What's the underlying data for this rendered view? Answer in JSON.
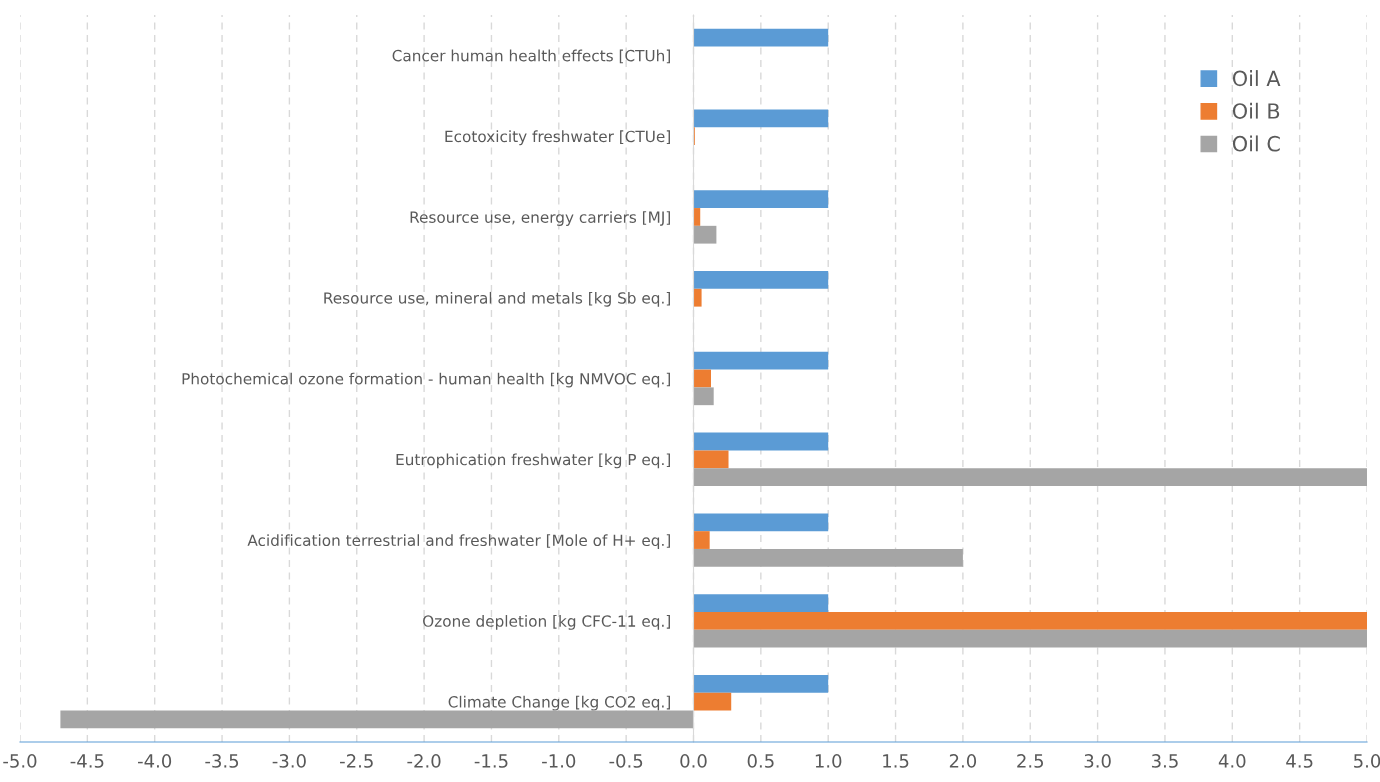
{
  "chart_data": {
    "type": "bar",
    "orientation": "horizontal",
    "categories": [
      "Cancer human health effects [CTUh]",
      "Ecotoxicity freshwater [CTUe]",
      "Resource use, energy carriers [MJ]",
      "Resource use, mineral and metals [kg Sb eq.]",
      "Photochemical ozone formation - human health [kg NMVOC eq.]",
      "Eutrophication freshwater [kg P eq.]",
      "Acidification terrestrial and freshwater [Mole of H+ eq.]",
      "Ozone depletion [kg CFC-11 eq.]",
      "Climate Change [kg CO2 eq.]"
    ],
    "series": [
      {
        "name": "Oil A",
        "color": "#5b9bd5",
        "values": [
          1,
          1,
          1,
          1,
          1,
          1,
          1,
          1,
          1
        ]
      },
      {
        "name": "Oil B",
        "color": "#ed7d31",
        "values": [
          null,
          0.01,
          0.05,
          0.06,
          0.13,
          0.26,
          0.12,
          5,
          0.28
        ]
      },
      {
        "name": "Oil C",
        "color": "#a5a5a5",
        "values": [
          null,
          null,
          0.17,
          null,
          0.15,
          5,
          2,
          5,
          -4.7
        ]
      }
    ],
    "xlim": [
      -5,
      5
    ],
    "xticks": [
      {
        "value": -5,
        "label": "-5.0"
      },
      {
        "value": -4.5,
        "label": "-4.5"
      },
      {
        "value": -4,
        "label": "-4.0"
      },
      {
        "value": -3.5,
        "label": "-3.5"
      },
      {
        "value": -3,
        "label": "-3.0"
      },
      {
        "value": -2.5,
        "label": "-2.5"
      },
      {
        "value": -2,
        "label": "-2.0"
      },
      {
        "value": -1.5,
        "label": "-1.5"
      },
      {
        "value": -1,
        "label": "-1.0"
      },
      {
        "value": -0.5,
        "label": "-0.5"
      },
      {
        "value": 0,
        "label": "0.0"
      },
      {
        "value": 0.5,
        "label": "0.5"
      },
      {
        "value": 1,
        "label": "1.0"
      },
      {
        "value": 1.5,
        "label": "1.5"
      },
      {
        "value": 2,
        "label": "2.0"
      },
      {
        "value": 2.5,
        "label": "2.5"
      },
      {
        "value": 3,
        "label": "3.0"
      },
      {
        "value": 3.5,
        "label": "3.5"
      },
      {
        "value": 4,
        "label": "4.0"
      },
      {
        "value": 4.5,
        "label": "4.5"
      },
      {
        "value": 5,
        "label": "5.0"
      }
    ],
    "grid": "x",
    "legend": "top right"
  }
}
